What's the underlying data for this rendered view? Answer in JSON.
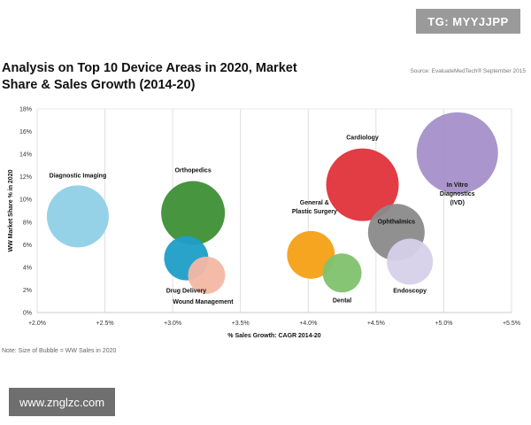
{
  "watermark_top": "TG: MYYJJPP",
  "watermark_bottom": "www.znglzc.com",
  "chart_data": {
    "type": "scatter",
    "title": "Analysis on Top 10 Device Areas in 2020, Market Share & Sales Growth (2014-20)",
    "source": "Source: EvaluateMedTech® September 2015",
    "note": "Note: Size of Bubble = WW Sales in 2020",
    "xlabel": "% Sales Growth: CAGR 2014-20",
    "ylabel": "WW Market Share % in 2020",
    "xlim": [
      2.0,
      5.5
    ],
    "ylim": [
      0,
      18
    ],
    "x_ticks": [
      "+2.0%",
      "+2.5%",
      "+3.0%",
      "+3.5%",
      "+4.0%",
      "+4.5%",
      "+5.0%",
      "+5.5%"
    ],
    "y_ticks": [
      "0%",
      "2%",
      "4%",
      "6%",
      "8%",
      "10%",
      "12%",
      "14%",
      "16%",
      "18%"
    ],
    "grid": "vertical",
    "series": [
      {
        "name": "Diagnostic Imaging",
        "x": 2.3,
        "y": 8.5,
        "size": 35,
        "color": "#8fd0e6"
      },
      {
        "name": "Orthopedics",
        "x": 3.15,
        "y": 8.8,
        "size": 36,
        "color": "#3d8f34"
      },
      {
        "name": "Drug Delivery",
        "x": 3.1,
        "y": 4.8,
        "size": 25,
        "color": "#1f9ec8"
      },
      {
        "name": "Wound Management",
        "x": 3.25,
        "y": 3.3,
        "size": 21,
        "color": "#f4b7a4"
      },
      {
        "name": "General & Plastic Surgery",
        "x": 4.02,
        "y": 5.1,
        "size": 27,
        "color": "#f5a015"
      },
      {
        "name": "Dental",
        "x": 4.25,
        "y": 3.5,
        "size": 22,
        "color": "#7fc26b"
      },
      {
        "name": "Cardiology",
        "x": 4.4,
        "y": 11.3,
        "size": 41,
        "color": "#e0313a"
      },
      {
        "name": "Ophthalmics",
        "x": 4.65,
        "y": 7.1,
        "size": 32,
        "color": "#8a8a8a"
      },
      {
        "name": "Endoscopy",
        "x": 4.75,
        "y": 4.5,
        "size": 26,
        "color": "#d6d0ea"
      },
      {
        "name": "In Vitro Diagnostics (IVD)",
        "x": 5.1,
        "y": 14.1,
        "size": 46,
        "color": "#a58fc9"
      }
    ]
  }
}
